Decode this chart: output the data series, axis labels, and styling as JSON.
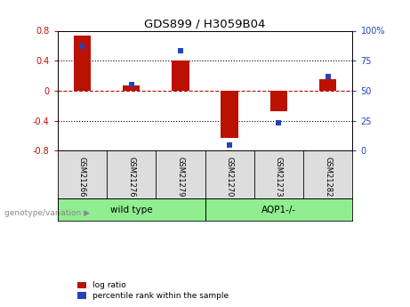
{
  "title": "GDS899 / H3059B04",
  "samples": [
    "GSM21266",
    "GSM21276",
    "GSM21279",
    "GSM21270",
    "GSM21273",
    "GSM21282"
  ],
  "log_ratios": [
    0.73,
    0.07,
    0.4,
    -0.63,
    -0.27,
    0.15
  ],
  "percentile_ranks": [
    87,
    55,
    83,
    5,
    23,
    62
  ],
  "bar_color_red": "#BB1100",
  "dot_color_blue": "#2244BB",
  "ylim_left": [
    -0.8,
    0.8
  ],
  "ylim_right": [
    0,
    100
  ],
  "yticks_left": [
    -0.8,
    -0.4,
    0.0,
    0.4,
    0.8
  ],
  "yticks_right": [
    0,
    25,
    50,
    75,
    100
  ],
  "ytick_labels_left": [
    "-0.8",
    "-0.4",
    "0",
    "0.4",
    "0.8"
  ],
  "ytick_labels_right": [
    "0",
    "25",
    "50",
    "75",
    "100%"
  ],
  "hlines": [
    0.4,
    0.0,
    -0.4
  ],
  "hline_styles": [
    "dotted",
    "dashed",
    "dotted"
  ],
  "hline_colors": [
    "black",
    "#BB1100",
    "black"
  ],
  "group_label": "genotype/variation",
  "legend_log_ratio": "log ratio",
  "legend_percentile": "percentile rank within the sample",
  "sample_bg_color": "#DDDDDD",
  "group_color": "#90EE90",
  "bar_width": 0.35
}
